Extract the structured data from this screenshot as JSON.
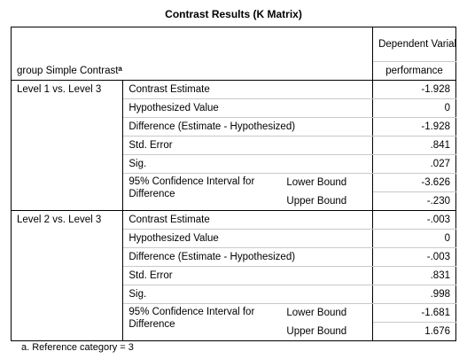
{
  "title": "Contrast Results (K Matrix)",
  "header": {
    "group_label": "group Simple Contrast",
    "group_sup": "a",
    "dependent_variable": "Dependent Variable",
    "variable": "performance"
  },
  "groups": [
    {
      "label": "Level 1 vs. Level 3",
      "contrast_estimate_label": "Contrast Estimate",
      "contrast_estimate": "-1.928",
      "hypothesized_label": "Hypothesized Value",
      "hypothesized": "0",
      "difference_label": "Difference (Estimate - Hypothesized)",
      "difference": "-1.928",
      "std_error_label": "Std. Error",
      "std_error": ".841",
      "sig_label": "Sig.",
      "sig": ".027",
      "ci_label": "95% Confidence Interval for Difference",
      "lower_label": "Lower Bound",
      "lower": "-3.626",
      "upper_label": "Upper Bound",
      "upper": "-.230"
    },
    {
      "label": "Level 2 vs. Level 3",
      "contrast_estimate_label": "Contrast Estimate",
      "contrast_estimate": "-.003",
      "hypothesized_label": "Hypothesized Value",
      "hypothesized": "0",
      "difference_label": "Difference (Estimate - Hypothesized)",
      "difference": "-.003",
      "std_error_label": "Std. Error",
      "std_error": ".831",
      "sig_label": "Sig.",
      "sig": ".998",
      "ci_label": "95% Confidence Interval for Difference",
      "lower_label": "Lower Bound",
      "lower": "-1.681",
      "upper_label": "Upper Bound",
      "upper": "1.676"
    }
  ],
  "footnote": "a. Reference category = 3"
}
